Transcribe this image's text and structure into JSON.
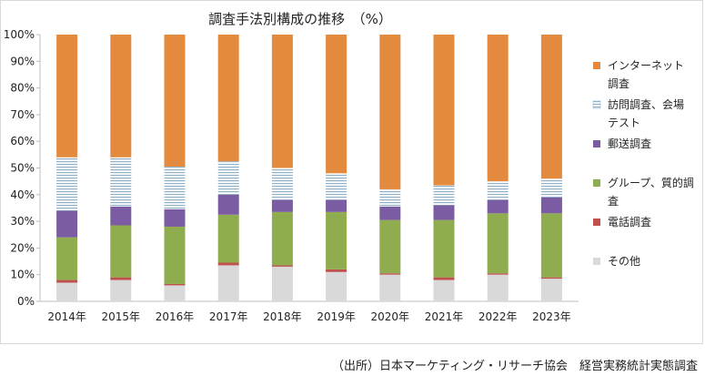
{
  "source_note": "（出所）日本マーケティング・リサーチ協会　経営実務統計実態調査",
  "colors": {
    "インターネット調査": "#e38a3e",
    "訪問調査、会場テスト": "#c6d8e4",
    "郵送調査": "#7b5ba2",
    "グループ、質的調査": "#8fac4f",
    "電話調査": "#c0504d",
    "その他": "#d9d9d9"
  },
  "chart_data": {
    "type": "bar",
    "stacked": true,
    "title": "調査手法別構成の推移　（%）",
    "xlabel": "",
    "ylabel": "",
    "ylim": [
      0,
      100
    ],
    "yticks": [
      "0%",
      "10%",
      "20%",
      "30%",
      "40%",
      "50%",
      "60%",
      "70%",
      "80%",
      "90%",
      "100%"
    ],
    "grid": false,
    "legend_position": "right",
    "categories": [
      "2014年",
      "2015年",
      "2016年",
      "2017年",
      "2018年",
      "2019年",
      "2020年",
      "2021年",
      "2022年",
      "2023年"
    ],
    "series": [
      {
        "name": "その他",
        "values": [
          7,
          8,
          6,
          13.5,
          13,
          11,
          10,
          8,
          10,
          8.5
        ]
      },
      {
        "name": "電話調査",
        "values": [
          1,
          1,
          0.5,
          1,
          0.5,
          1,
          0.5,
          1,
          0.5,
          0.5
        ]
      },
      {
        "name": "グループ、質的調査",
        "values": [
          16,
          19.5,
          21.5,
          18,
          20,
          21.5,
          20,
          21.5,
          22.5,
          24
        ]
      },
      {
        "name": "郵送調査",
        "values": [
          10,
          7,
          6.5,
          7.5,
          4.5,
          4.5,
          5,
          5.5,
          5,
          6
        ]
      },
      {
        "name": "訪問調査、会場テスト",
        "values": [
          20,
          18.5,
          16,
          12.5,
          12,
          10,
          6.5,
          7.5,
          7,
          7
        ]
      },
      {
        "name": "インターネット調査",
        "values": [
          46,
          46,
          49.5,
          47.5,
          50,
          52,
          58,
          56.5,
          55,
          54
        ]
      }
    ],
    "legend": [
      {
        "series": "インターネット調査",
        "lines": [
          "インターネット",
          "調査"
        ]
      },
      {
        "series": "訪問調査、会場テスト",
        "lines": [
          "訪問調査、会場",
          "テスト"
        ]
      },
      {
        "series": "郵送調査",
        "lines": [
          "郵送調査"
        ]
      },
      {
        "series": "グループ、質的調査",
        "lines": [
          "グループ、質的調",
          "査"
        ]
      },
      {
        "series": "電話調査",
        "lines": [
          "電話調査"
        ]
      },
      {
        "series": "その他",
        "lines": [
          "その他"
        ]
      }
    ]
  }
}
